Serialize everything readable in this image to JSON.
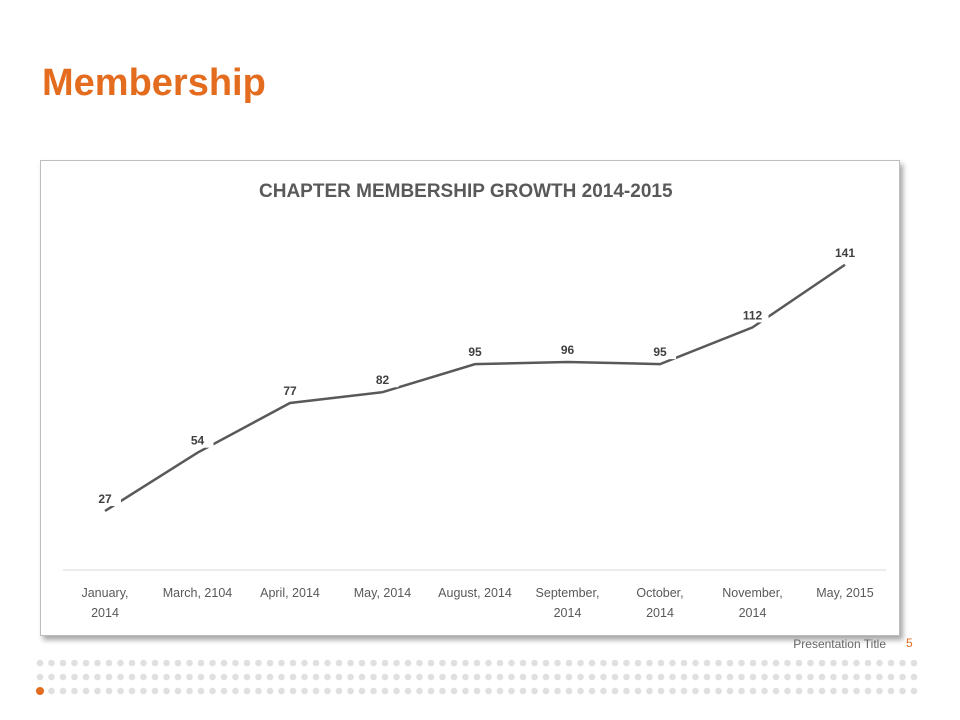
{
  "slide": {
    "title": "Membership",
    "footer_text": "Presentation Title",
    "page_number": "5"
  },
  "colors": {
    "accent": "#e36c1f",
    "line": "#595959",
    "dot_gray": "#e0e0e0"
  },
  "chart_data": {
    "type": "line",
    "title": "CHAPTER MEMBERSHIP GROWTH 2014-2015",
    "xlabel": "",
    "ylabel": "",
    "categories": [
      [
        "January,",
        "2014"
      ],
      [
        "March, 2104"
      ],
      [
        "April, 2014"
      ],
      [
        "May, 2014"
      ],
      [
        "August, 2014"
      ],
      [
        "September,",
        "2014"
      ],
      [
        "October,",
        "2014"
      ],
      [
        "November,",
        "2014"
      ],
      [
        "May, 2015"
      ]
    ],
    "values": [
      27,
      54,
      77,
      82,
      95,
      96,
      95,
      112,
      141
    ],
    "data_labels": [
      "27",
      "54",
      "77",
      "82",
      "95",
      "96",
      "95",
      "112",
      "141"
    ],
    "legend": "none",
    "grid": false,
    "y_axis_visible": false
  }
}
